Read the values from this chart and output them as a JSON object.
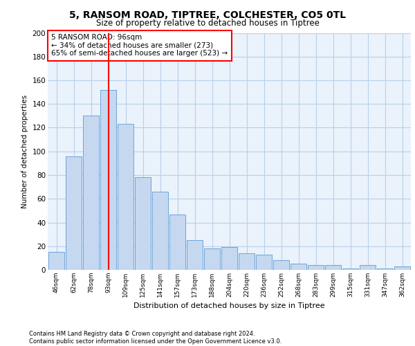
{
  "title1": "5, RANSOM ROAD, TIPTREE, COLCHESTER, CO5 0TL",
  "title2": "Size of property relative to detached houses in Tiptree",
  "xlabel": "Distribution of detached houses by size in Tiptree",
  "ylabel": "Number of detached properties",
  "categories": [
    "46sqm",
    "62sqm",
    "78sqm",
    "93sqm",
    "109sqm",
    "125sqm",
    "141sqm",
    "157sqm",
    "173sqm",
    "188sqm",
    "204sqm",
    "220sqm",
    "236sqm",
    "252sqm",
    "268sqm",
    "283sqm",
    "299sqm",
    "315sqm",
    "331sqm",
    "347sqm",
    "362sqm"
  ],
  "values": [
    15,
    96,
    130,
    152,
    123,
    78,
    66,
    47,
    25,
    18,
    19,
    14,
    13,
    8,
    5,
    4,
    4,
    1,
    4,
    1,
    3
  ],
  "bar_color": "#c5d8f0",
  "bar_edge_color": "#5b9bd5",
  "vline_x": 3,
  "vline_color": "red",
  "annotation_text": "5 RANSOM ROAD: 96sqm\n← 34% of detached houses are smaller (273)\n65% of semi-detached houses are larger (523) →",
  "annotation_box_color": "white",
  "annotation_box_edge_color": "red",
  "ylim": [
    0,
    200
  ],
  "yticks": [
    0,
    20,
    40,
    60,
    80,
    100,
    120,
    140,
    160,
    180,
    200
  ],
  "grid_color": "#b8cfe8",
  "bg_color": "#eaf2fb",
  "footer1": "Contains HM Land Registry data © Crown copyright and database right 2024.",
  "footer2": "Contains public sector information licensed under the Open Government Licence v3.0."
}
